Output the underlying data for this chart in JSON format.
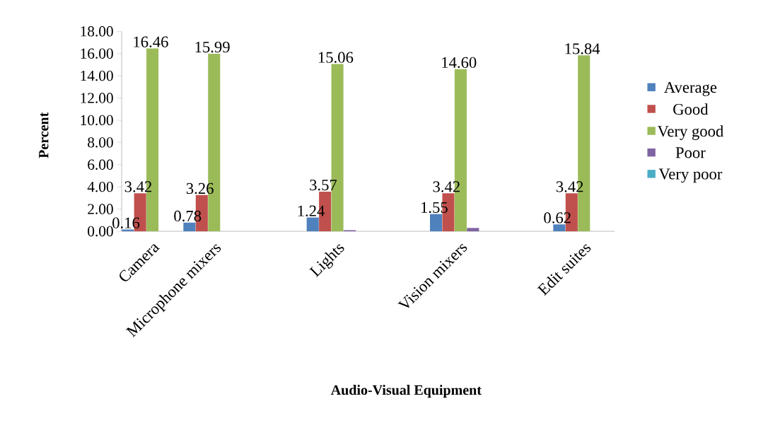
{
  "chart_data": {
    "type": "bar",
    "xlabel": "Audio-Visual Equipment",
    "ylabel": "Percent",
    "categories": [
      "Camera",
      "Microphone mixers",
      null,
      "Lights",
      null,
      "Vision mixers",
      null,
      "Edit suites"
    ],
    "series": [
      {
        "name": "Average",
        "color": "#4f81bd",
        "values": [
          0.16,
          0.78,
          null,
          1.24,
          null,
          1.55,
          null,
          0.62
        ],
        "value_labels": [
          "0.16",
          "0.78",
          null,
          "1.24",
          null,
          "1.55",
          null,
          "0.62"
        ]
      },
      {
        "name": "Good",
        "color": "#c0504d",
        "values": [
          3.42,
          3.26,
          null,
          3.57,
          null,
          3.42,
          null,
          3.42
        ],
        "value_labels": [
          "3.42",
          "3.26",
          null,
          "3.57",
          null,
          "3.42",
          null,
          "3.42"
        ]
      },
      {
        "name": "Very good",
        "color": "#9bbb59",
        "values": [
          16.46,
          15.99,
          null,
          15.06,
          null,
          14.6,
          null,
          15.84
        ],
        "value_labels": [
          "16.46",
          "15.99",
          null,
          "15.06",
          null,
          "14.60",
          null,
          "15.84"
        ]
      },
      {
        "name": "Poor",
        "color": "#8064a2",
        "values": [
          0,
          0,
          null,
          0.1,
          null,
          0.3,
          null,
          0
        ]
      },
      {
        "name": "Very poor",
        "color": "#4bacc6",
        "values": [
          0,
          0,
          null,
          0,
          null,
          0,
          null,
          0
        ]
      }
    ],
    "ylim": [
      0,
      18
    ],
    "yticks": [
      {
        "value": 0,
        "label": "0.00"
      },
      {
        "value": 2,
        "label": "2.00"
      },
      {
        "value": 4,
        "label": "4.00"
      },
      {
        "value": 6,
        "label": "6.00"
      },
      {
        "value": 8,
        "label": "8.00"
      },
      {
        "value": 10,
        "label": "10.00"
      },
      {
        "value": 12,
        "label": "12.00"
      },
      {
        "value": 14,
        "label": "14.00"
      },
      {
        "value": 16,
        "label": "16.00"
      },
      {
        "value": 18,
        "label": "18.00"
      }
    ],
    "grid": false,
    "legend": "right"
  }
}
